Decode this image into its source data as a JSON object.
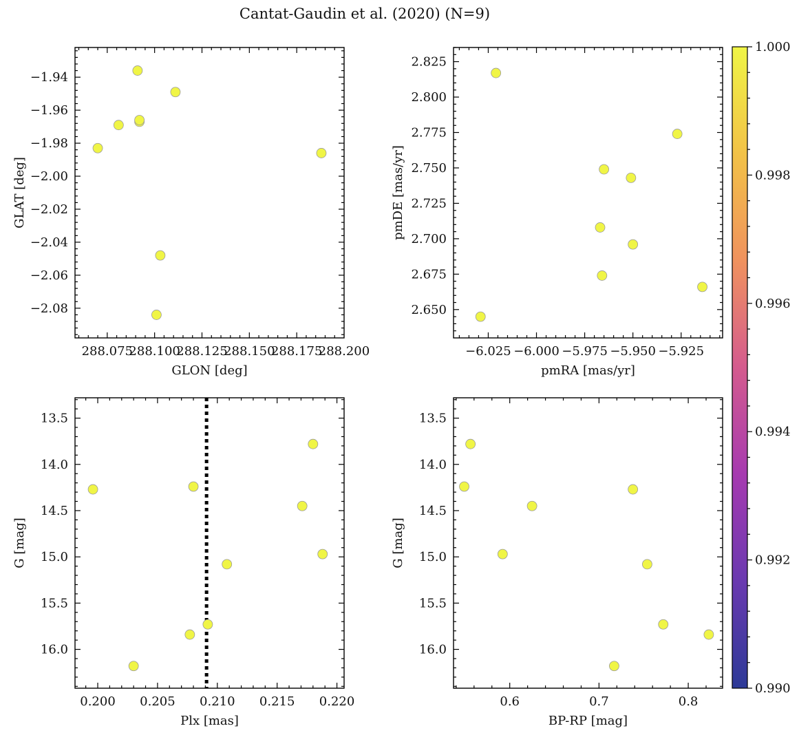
{
  "chart_data": {
    "title": "Cantat-Gaudin et al. (2020) (N=9)",
    "point_color": "#f0f546",
    "colorbar": {
      "range": [
        0.99,
        1.0
      ],
      "ticks": [
        0.99,
        0.992,
        0.994,
        0.996,
        0.998,
        1.0
      ],
      "tick_labels": [
        "0.990",
        "0.992",
        "0.994",
        "0.996",
        "0.998",
        "1.000"
      ],
      "colors": [
        "#2d3a97",
        "#6a3ab0",
        "#a63ab0",
        "#d45b8e",
        "#f0925e",
        "#f2c247",
        "#f0f546"
      ]
    },
    "panels": [
      {
        "type": "scatter",
        "xlabel": "GLON [deg]",
        "ylabel": "GLAT [deg]",
        "xlim": [
          288.058,
          288.2
        ],
        "ylim": [
          -2.098,
          -1.922
        ],
        "y_inverted": false,
        "xticks": [
          288.075,
          288.1,
          288.125,
          288.15,
          288.175,
          288.2
        ],
        "xtick_labels": [
          "288.075",
          "288.100",
          "288.125",
          "288.150",
          "288.175",
          "288.200"
        ],
        "yticks": [
          -1.94,
          -1.96,
          -1.98,
          -2.0,
          -2.02,
          -2.04,
          -2.06,
          -2.08
        ],
        "ytick_labels": [
          "−1.94",
          "−1.96",
          "−1.98",
          "−2.00",
          "−2.02",
          "−2.04",
          "−2.06",
          "−2.08"
        ],
        "x": [
          288.07,
          288.081,
          288.091,
          288.092,
          288.092,
          288.111,
          288.103,
          288.101,
          288.188
        ],
        "y": [
          -1.983,
          -1.969,
          -1.936,
          -1.967,
          -1.966,
          -1.949,
          -2.048,
          -2.084,
          -1.986
        ],
        "vline": null
      },
      {
        "type": "scatter",
        "xlabel": "pmRA [mas/yr]",
        "ylabel": "pmDE [mas/yr]",
        "xlim": [
          -6.043,
          -5.9035
        ],
        "ylim": [
          2.63,
          2.835
        ],
        "y_inverted": false,
        "xticks": [
          -6.025,
          -6.0,
          -5.975,
          -5.95,
          -5.925
        ],
        "xtick_labels": [
          "−6.025",
          "−6.000",
          "−5.975",
          "−5.950",
          "−5.925"
        ],
        "yticks": [
          2.65,
          2.675,
          2.7,
          2.725,
          2.75,
          2.775,
          2.8,
          2.825
        ],
        "ytick_labels": [
          "2.650",
          "2.675",
          "2.700",
          "2.725",
          "2.750",
          "2.775",
          "2.800",
          "2.825"
        ],
        "x": [
          -6.021,
          -6.029,
          -5.965,
          -5.967,
          -5.966,
          -5.951,
          -5.95,
          -5.927,
          -5.914
        ],
        "y": [
          2.817,
          2.645,
          2.749,
          2.708,
          2.674,
          2.743,
          2.696,
          2.774,
          2.666
        ],
        "vline": null
      },
      {
        "type": "scatter",
        "xlabel": "Plx [mas]",
        "ylabel": "G [mag]",
        "xlim": [
          0.1981,
          0.2206
        ],
        "ylim": [
          13.28,
          16.42
        ],
        "y_inverted": true,
        "xticks": [
          0.2,
          0.205,
          0.21,
          0.215,
          0.22
        ],
        "xtick_labels": [
          "0.200",
          "0.205",
          "0.210",
          "0.215",
          "0.220"
        ],
        "yticks": [
          13.5,
          14.0,
          14.5,
          15.0,
          15.5,
          16.0
        ],
        "ytick_labels": [
          "13.5",
          "14.0",
          "14.5",
          "15.0",
          "15.5",
          "16.0"
        ],
        "x": [
          0.1996,
          0.208,
          0.218,
          0.2171,
          0.2188,
          0.2108,
          0.2092,
          0.2077,
          0.203
        ],
        "y": [
          14.27,
          14.24,
          13.78,
          14.45,
          14.97,
          15.08,
          15.73,
          15.84,
          16.18
        ],
        "vline": 0.2091
      },
      {
        "type": "scatter",
        "xlabel": "BP-RP [mag]",
        "ylabel": "G [mag]",
        "xlim": [
          0.537,
          0.8385
        ],
        "ylim": [
          13.28,
          16.42
        ],
        "y_inverted": true,
        "xticks": [
          0.6,
          0.7,
          0.8
        ],
        "xtick_labels": [
          "0.6",
          "0.7",
          "0.8"
        ],
        "yticks": [
          13.5,
          14.0,
          14.5,
          15.0,
          15.5,
          16.0
        ],
        "ytick_labels": [
          "13.5",
          "14.0",
          "14.5",
          "15.0",
          "15.5",
          "16.0"
        ],
        "x": [
          0.556,
          0.549,
          0.738,
          0.625,
          0.592,
          0.754,
          0.772,
          0.823,
          0.717
        ],
        "y": [
          13.78,
          14.24,
          14.27,
          14.45,
          14.97,
          15.08,
          15.73,
          15.84,
          16.18
        ],
        "vline": null
      }
    ]
  }
}
